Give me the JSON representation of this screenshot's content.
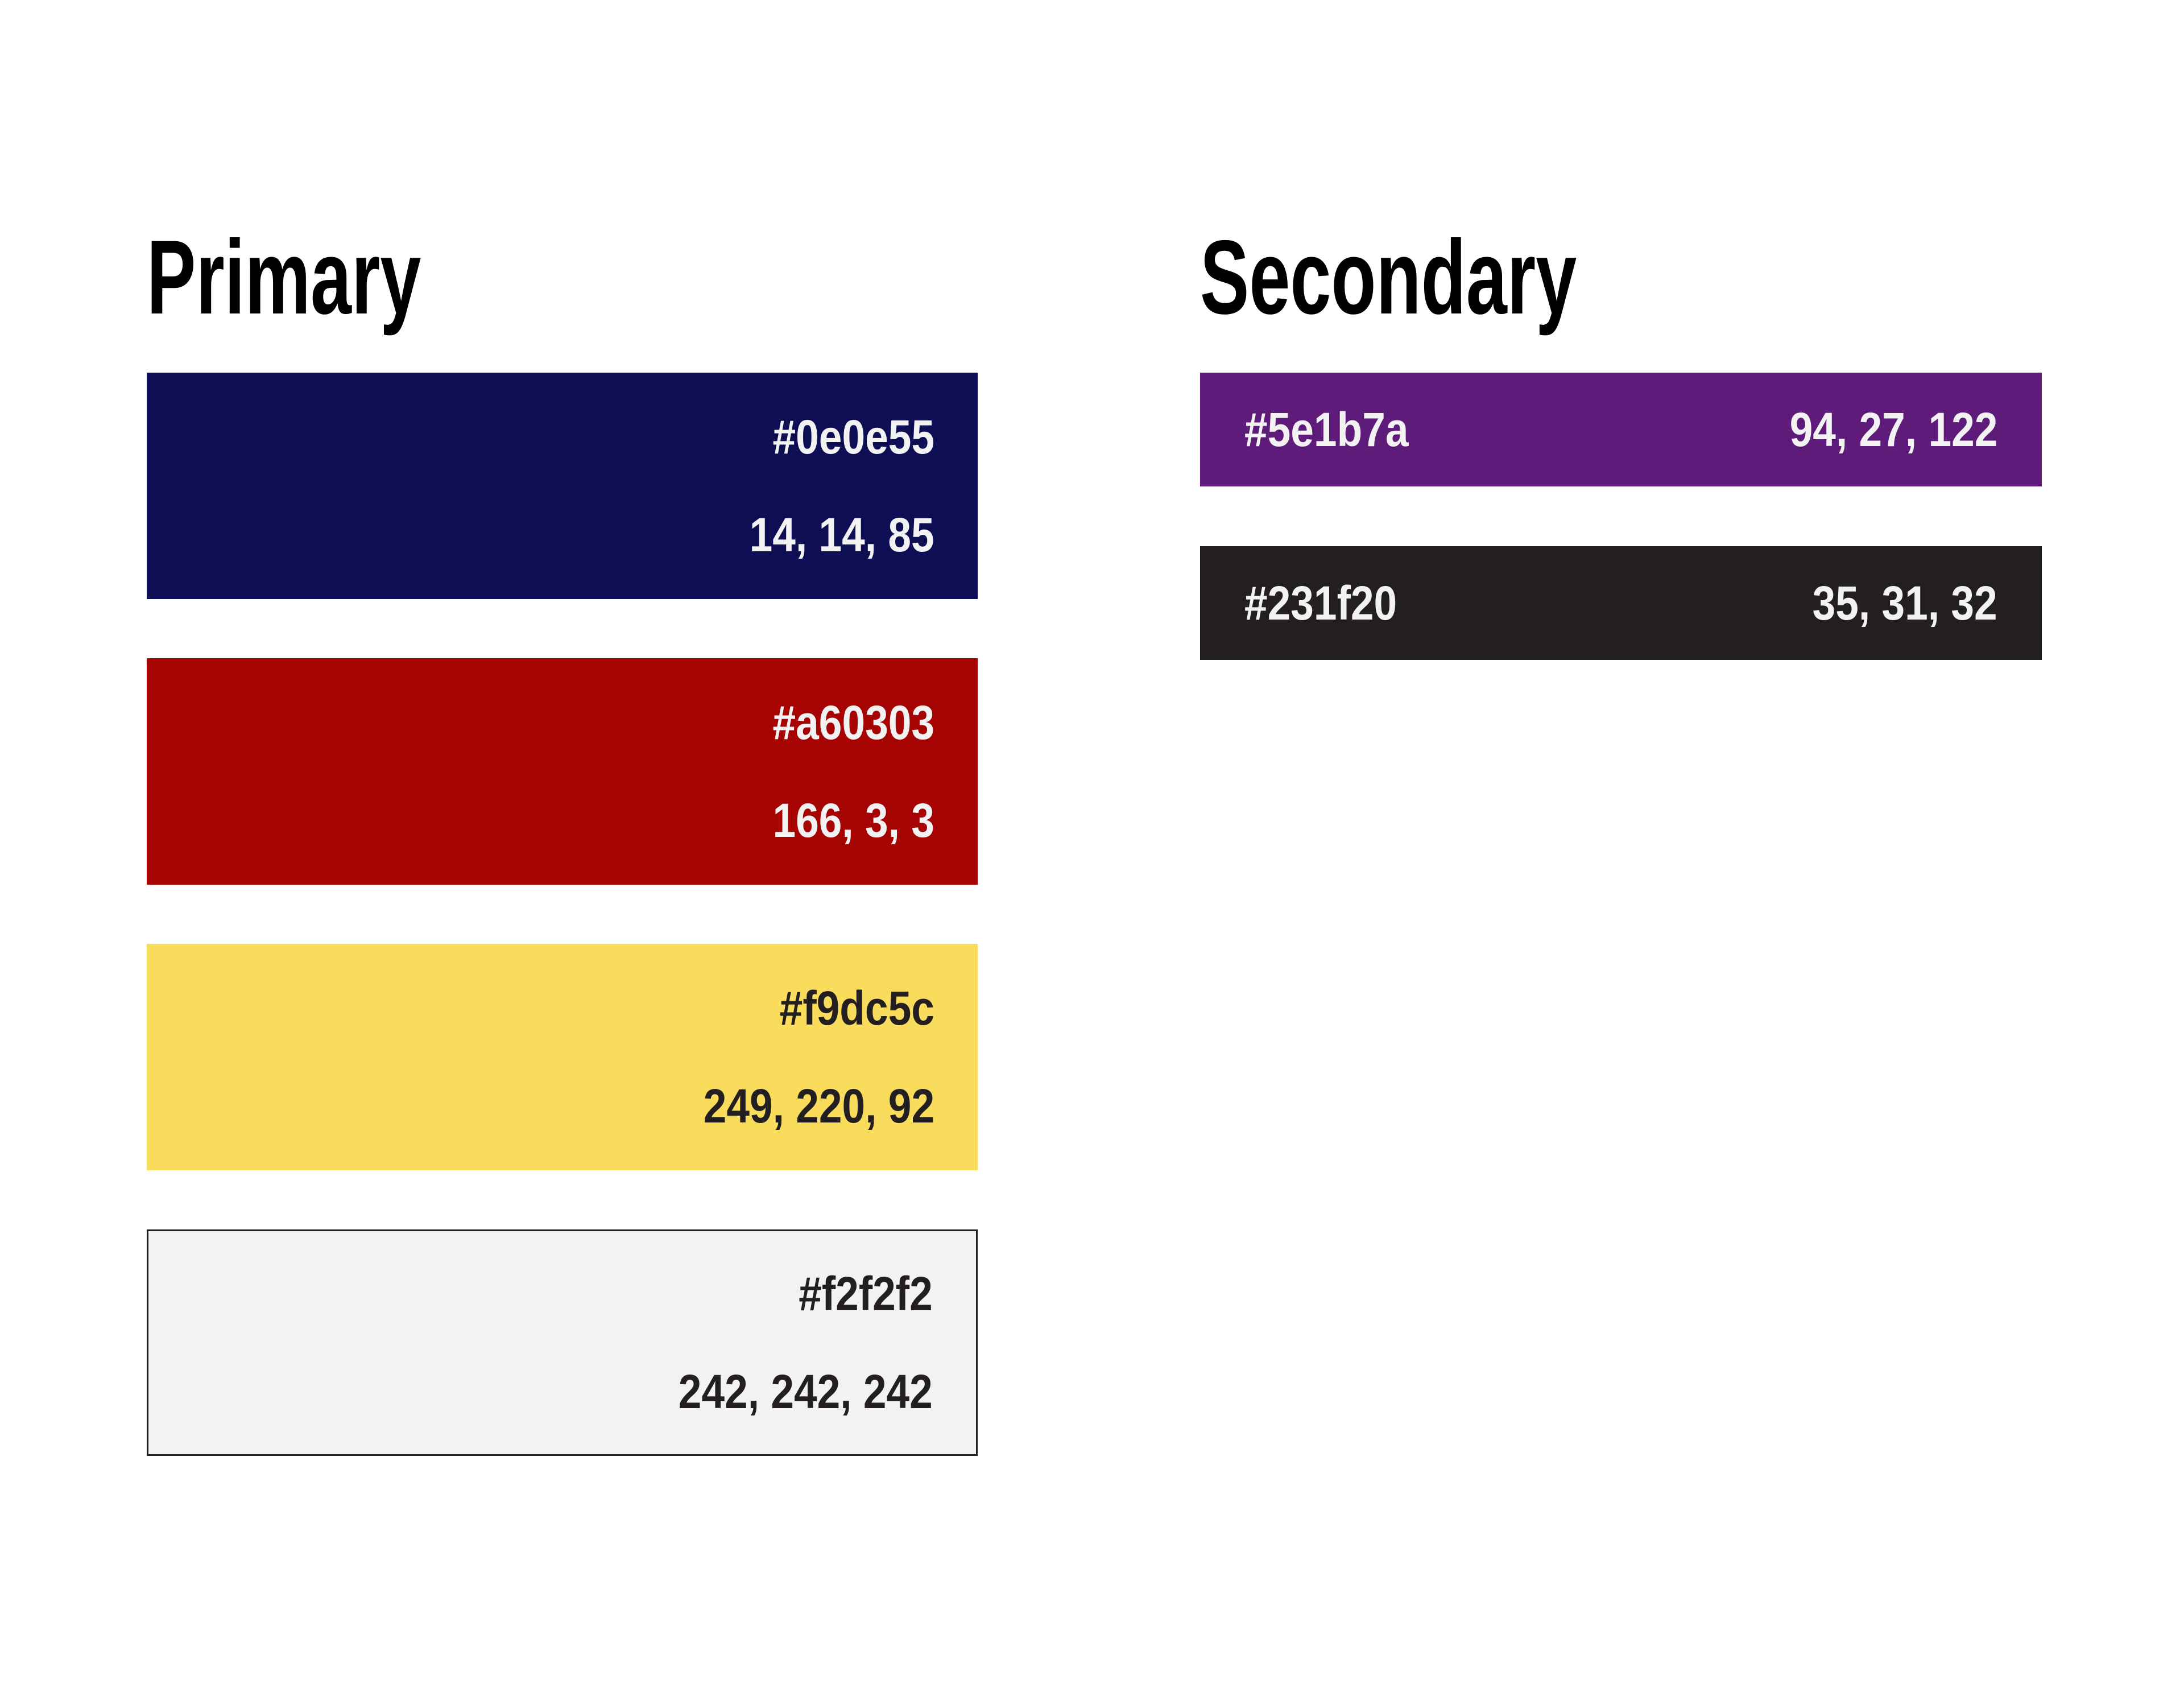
{
  "page": {
    "background": "#ffffff"
  },
  "sections": [
    {
      "title": "Primary",
      "swatches": [
        {
          "name": "navy",
          "hex": "#0e0e55",
          "rgb": "14, 14, 85",
          "fg": "#f2f2f2"
        },
        {
          "name": "red",
          "hex": "#a60303",
          "rgb": "166, 3, 3",
          "fg": "#f2f2f2"
        },
        {
          "name": "yellow",
          "hex": "#f9dc5c",
          "rgb": "249, 220, 92",
          "fg": "#231f20"
        },
        {
          "name": "light-gray",
          "hex": "#f2f2f2",
          "rgb": "242, 242, 242",
          "fg": "#231f20",
          "border_color": "#231f20"
        }
      ]
    },
    {
      "title": "Secondary",
      "swatches": [
        {
          "name": "purple",
          "hex": "#5e1b7a",
          "rgb": "94, 27, 122",
          "fg": "#f2f2f2"
        },
        {
          "name": "black",
          "hex": "#231f20",
          "rgb": "35, 31, 32",
          "fg": "#f2f2f2"
        }
      ]
    }
  ]
}
